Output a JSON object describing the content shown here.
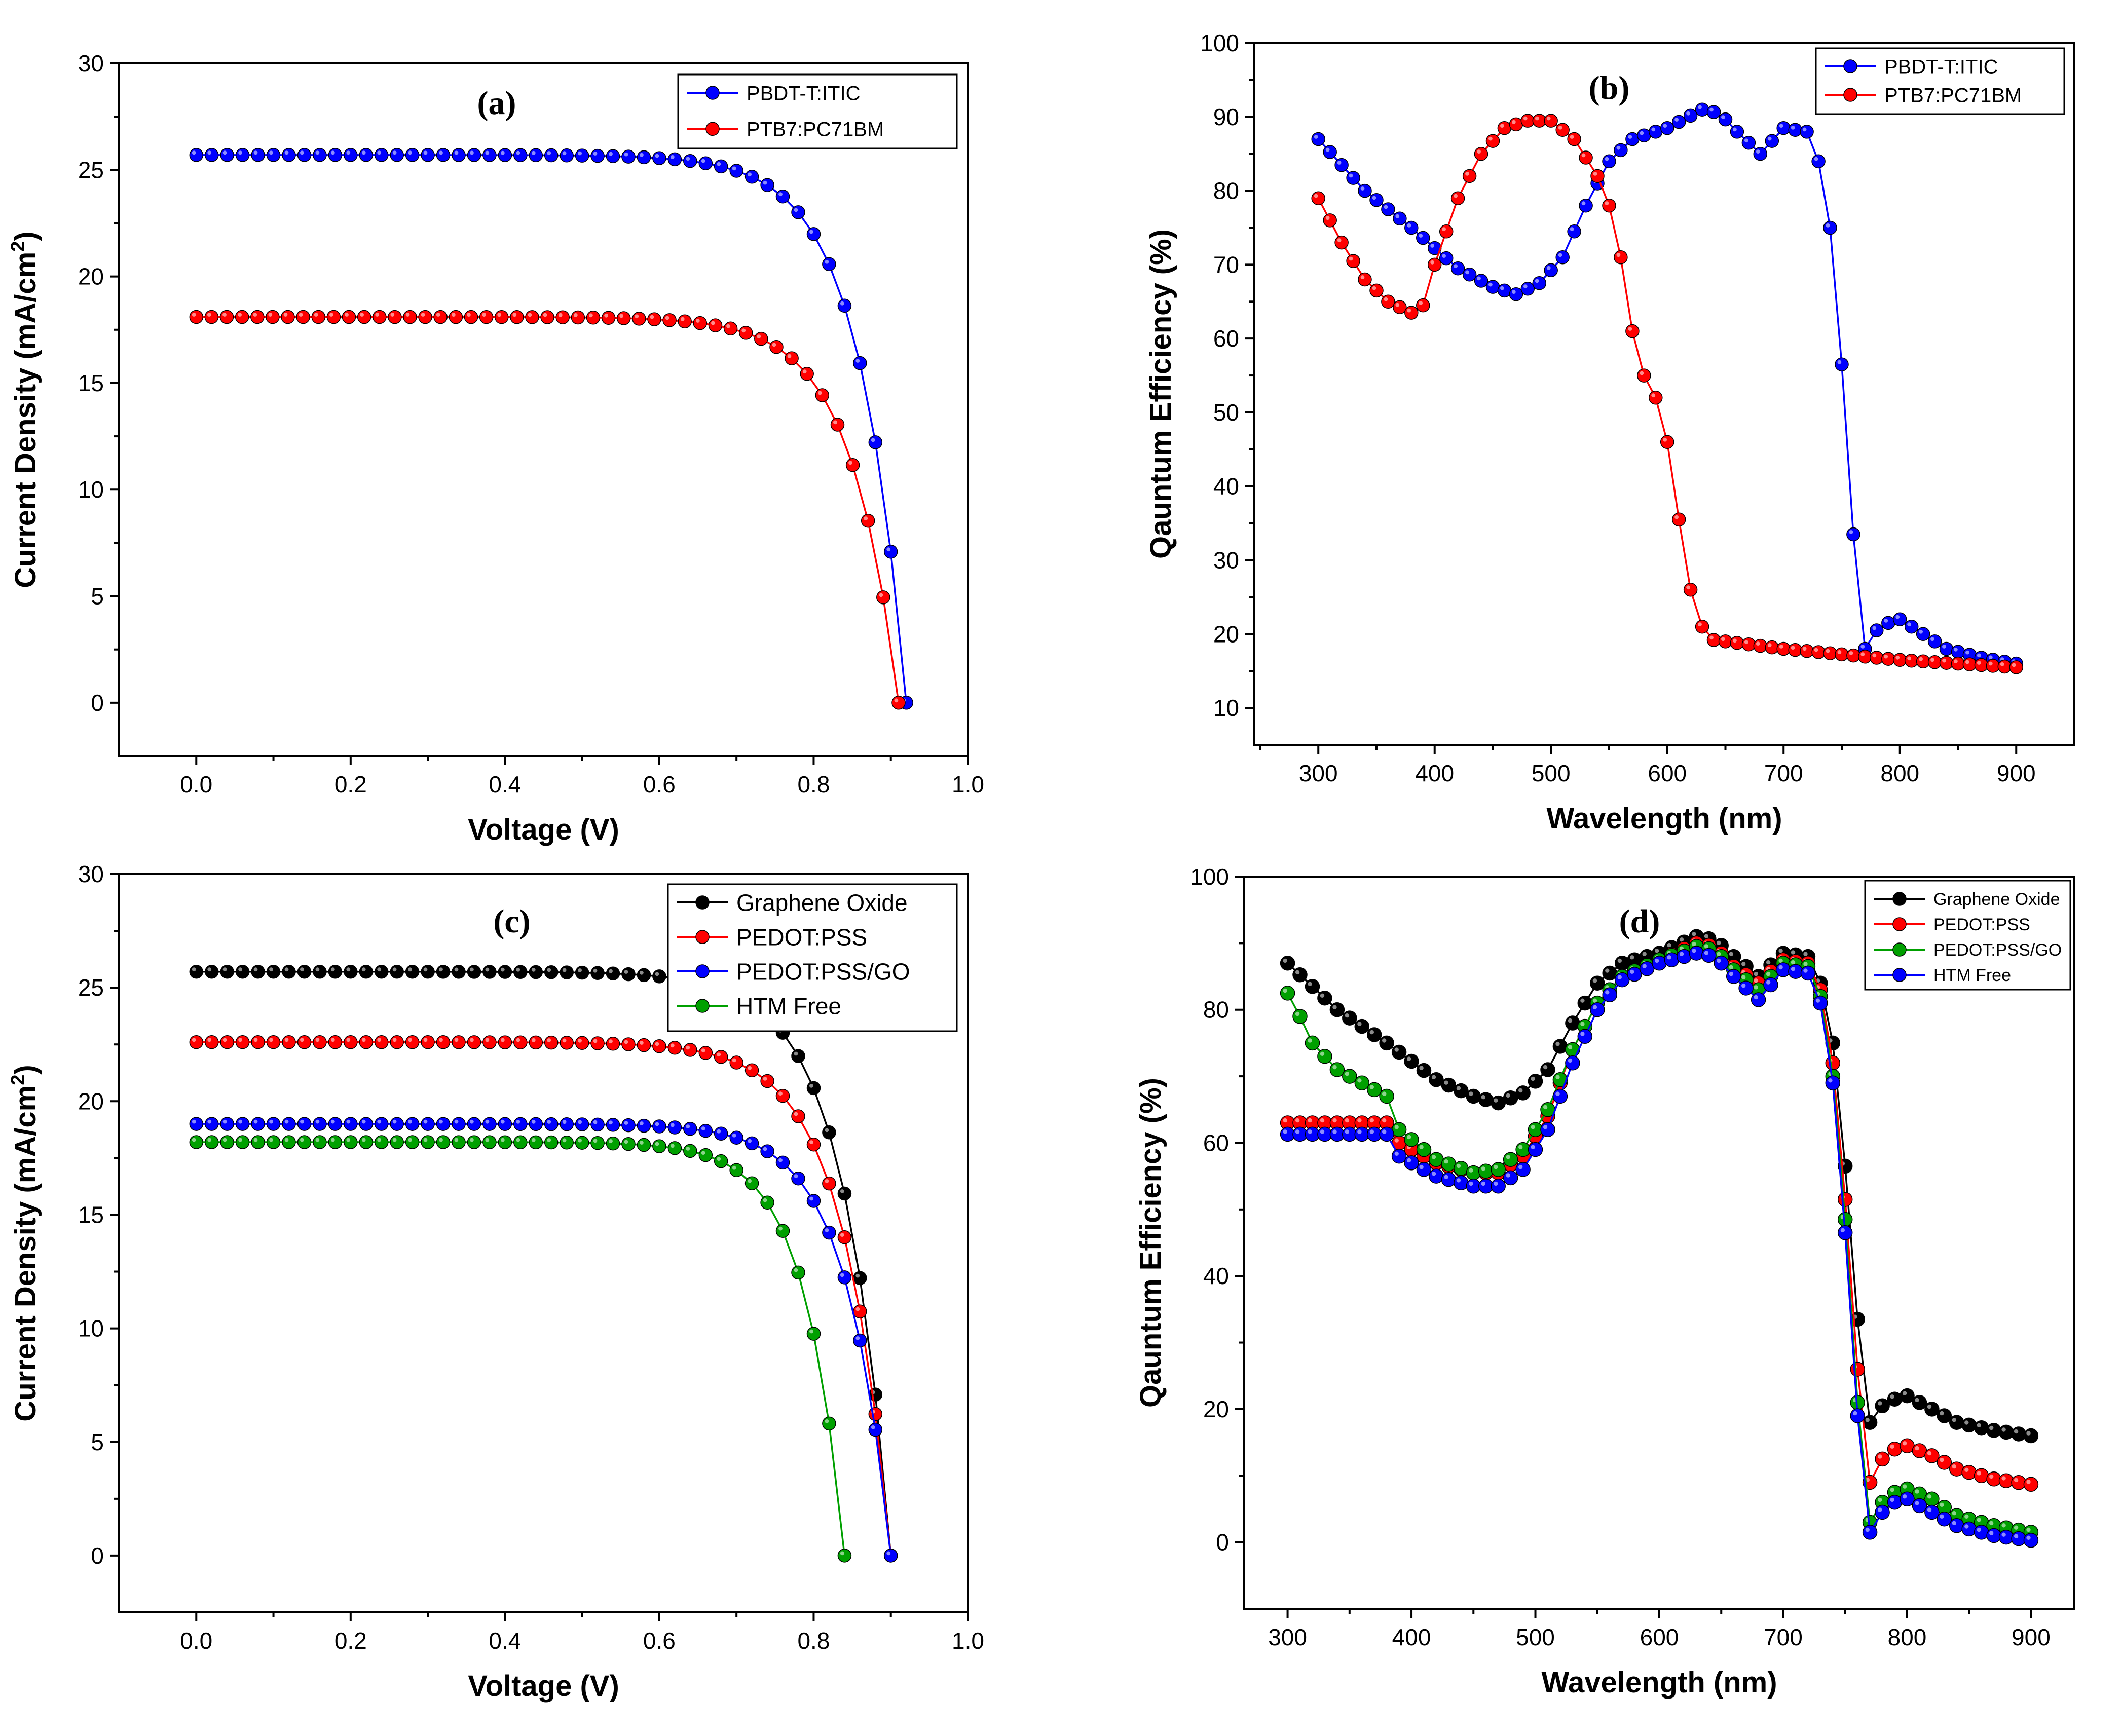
{
  "chart_data": [
    {
      "id": "a",
      "type": "line",
      "panel_label": "(a)",
      "xlabel": "Voltage (V)",
      "ylabel": "Current Density (mA/cm²)",
      "ylabel_base": "Current Density (mA/cm",
      "ylabel_sup": "2",
      "ylabel_end": ")",
      "xlim": [
        -0.1,
        1.0
      ],
      "ylim": [
        -2.5,
        30
      ],
      "xticks": [
        0.0,
        0.2,
        0.4,
        0.6,
        0.8,
        1.0
      ],
      "xtick_labels": [
        "0.0",
        "0.2",
        "0.4",
        "0.6",
        "0.8",
        "1.0"
      ],
      "yticks": [
        0,
        5,
        10,
        15,
        20,
        25,
        30
      ],
      "ytick_labels": [
        "0",
        "5",
        "10",
        "15",
        "20",
        "25",
        "30"
      ],
      "legend_position": "top-right",
      "series": [
        {
          "name": "PBDT-T:ITIC",
          "color": "#0000ff",
          "model": "jv",
          "params": {
            "jsc": 25.7,
            "voc": 0.92,
            "npts": 47
          }
        },
        {
          "name": "PTB7:PC71BM",
          "color": "#ff0000",
          "model": "jv",
          "params": {
            "jsc": 18.1,
            "voc": 0.91,
            "npts": 47
          }
        }
      ]
    },
    {
      "id": "b",
      "type": "line",
      "panel_label": "(b)",
      "xlabel": "Wavelength (nm)",
      "ylabel": "Qauntum Efficiency (%)",
      "xlim": [
        245,
        950
      ],
      "ylim": [
        5,
        100
      ],
      "xticks": [
        300,
        400,
        500,
        600,
        700,
        800,
        900
      ],
      "xtick_labels": [
        "300",
        "400",
        "500",
        "600",
        "700",
        "800",
        "900"
      ],
      "yticks": [
        10,
        20,
        30,
        40,
        50,
        60,
        70,
        80,
        90,
        100
      ],
      "ytick_labels": [
        "10",
        "20",
        "30",
        "40",
        "50",
        "60",
        "70",
        "80",
        "90",
        "100"
      ],
      "legend_position": "top-right",
      "series": [
        {
          "name": "PBDT-T:ITIC",
          "color": "#0000ff",
          "step": 10,
          "anchors": [
            [
              300,
              87
            ],
            [
              340,
              80
            ],
            [
              380,
              75
            ],
            [
              420,
              69.5
            ],
            [
              450,
              67
            ],
            [
              470,
              66
            ],
            [
              490,
              67.5
            ],
            [
              510,
              71
            ],
            [
              530,
              78
            ],
            [
              550,
              84
            ],
            [
              570,
              87
            ],
            [
              600,
              88.5
            ],
            [
              630,
              91
            ],
            [
              645,
              90.5
            ],
            [
              660,
              88
            ],
            [
              680,
              85
            ],
            [
              700,
              88.5
            ],
            [
              720,
              88
            ],
            [
              730,
              84
            ],
            [
              740,
              75
            ],
            [
              750,
              56.5
            ],
            [
              760,
              33.5
            ],
            [
              770,
              18
            ],
            [
              780,
              20.5
            ],
            [
              790,
              21.5
            ],
            [
              800,
              22
            ],
            [
              820,
              20
            ],
            [
              840,
              18
            ],
            [
              870,
              16.8
            ],
            [
              900,
              16
            ]
          ]
        },
        {
          "name": "PTB7:PC71BM",
          "color": "#ff0000",
          "step": 10,
          "anchors": [
            [
              300,
              79
            ],
            [
              320,
              73
            ],
            [
              340,
              68
            ],
            [
              360,
              65
            ],
            [
              380,
              63.5
            ],
            [
              390,
              64.5
            ],
            [
              400,
              70
            ],
            [
              420,
              79
            ],
            [
              440,
              85
            ],
            [
              460,
              88.5
            ],
            [
              480,
              89.5
            ],
            [
              500,
              89.5
            ],
            [
              520,
              87
            ],
            [
              540,
              82
            ],
            [
              550,
              78
            ],
            [
              560,
              71
            ],
            [
              570,
              61
            ],
            [
              580,
              55
            ],
            [
              590,
              52
            ],
            [
              600,
              46
            ],
            [
              610,
              35.5
            ],
            [
              620,
              26
            ],
            [
              630,
              21
            ],
            [
              640,
              19.2
            ],
            [
              700,
              18
            ],
            [
              800,
              16.5
            ],
            [
              900,
              15.5
            ]
          ]
        }
      ]
    },
    {
      "id": "c",
      "type": "line",
      "panel_label": "(c)",
      "xlabel": "Voltage (V)",
      "ylabel": "Current Density (mA/cm²)",
      "ylabel_base": "Current Density (mA/cm",
      "ylabel_sup": "2",
      "ylabel_end": ")",
      "xlim": [
        -0.1,
        1.0
      ],
      "ylim": [
        -2.5,
        30
      ],
      "xticks": [
        0.0,
        0.2,
        0.4,
        0.6,
        0.8,
        1.0
      ],
      "xtick_labels": [
        "0.0",
        "0.2",
        "0.4",
        "0.6",
        "0.8",
        "1.0"
      ],
      "yticks": [
        0,
        5,
        10,
        15,
        20,
        25,
        30
      ],
      "ytick_labels": [
        "0",
        "5",
        "10",
        "15",
        "20",
        "25",
        "30"
      ],
      "legend_position": "top-right",
      "series": [
        {
          "name": "Graphene Oxide",
          "color": "#000000",
          "model": "jv",
          "params": {
            "jsc": 25.7,
            "voc": 0.9,
            "npts": 46
          }
        },
        {
          "name": "PEDOT:PSS",
          "color": "#ff0000",
          "model": "jv",
          "params": {
            "jsc": 22.6,
            "voc": 0.9,
            "npts": 46
          }
        },
        {
          "name": "PEDOT:PSS/GO",
          "color": "#0000ff",
          "model": "jv_steep",
          "params": {
            "jsc": 19.0,
            "voc": 0.9,
            "npts": 46
          }
        },
        {
          "name": "HTM Free",
          "color": "#00a000",
          "model": "jv_early",
          "params": {
            "jsc": 18.2,
            "voc": 0.84,
            "npts": 43
          }
        }
      ]
    },
    {
      "id": "d",
      "type": "line",
      "panel_label": "(d)",
      "xlabel": "Wavelength (nm)",
      "ylabel": "Qauntum Efficiency (%)",
      "xlim": [
        265,
        935
      ],
      "ylim": [
        -10,
        100
      ],
      "xticks": [
        300,
        400,
        500,
        600,
        700,
        800,
        900
      ],
      "xtick_labels": [
        "300",
        "400",
        "500",
        "600",
        "700",
        "800",
        "900"
      ],
      "yticks": [
        0,
        20,
        40,
        60,
        80,
        100
      ],
      "ytick_labels": [
        "0",
        "20",
        "40",
        "60",
        "80",
        "100"
      ],
      "legend_position": "top-right",
      "series": [
        {
          "name": "Graphene Oxide",
          "color": "#000000",
          "step": 10,
          "anchors": [
            [
              300,
              87
            ],
            [
              340,
              80
            ],
            [
              380,
              75
            ],
            [
              420,
              69.5
            ],
            [
              450,
              67
            ],
            [
              470,
              66
            ],
            [
              490,
              67.5
            ],
            [
              510,
              71
            ],
            [
              530,
              78
            ],
            [
              550,
              84
            ],
            [
              570,
              87
            ],
            [
              600,
              88.5
            ],
            [
              630,
              91
            ],
            [
              645,
              90.5
            ],
            [
              660,
              88
            ],
            [
              680,
              85
            ],
            [
              700,
              88.5
            ],
            [
              720,
              88
            ],
            [
              730,
              84
            ],
            [
              740,
              75
            ],
            [
              750,
              56.5
            ],
            [
              760,
              33.5
            ],
            [
              770,
              18
            ],
            [
              780,
              20.5
            ],
            [
              790,
              21.5
            ],
            [
              800,
              22
            ],
            [
              820,
              20
            ],
            [
              840,
              18
            ],
            [
              870,
              16.8
            ],
            [
              900,
              16
            ]
          ]
        },
        {
          "name": "PEDOT:PSS",
          "color": "#ff0000",
          "step": 10,
          "anchors": [
            [
              300,
              63
            ],
            [
              380,
              63
            ],
            [
              390,
              60
            ],
            [
              420,
              57
            ],
            [
              450,
              55.5
            ],
            [
              470,
              55.5
            ],
            [
              490,
              58
            ],
            [
              510,
              64
            ],
            [
              530,
              74
            ],
            [
              550,
              81
            ],
            [
              570,
              85
            ],
            [
              600,
              87.5
            ],
            [
              630,
              90
            ],
            [
              645,
              89.5
            ],
            [
              660,
              86.5
            ],
            [
              680,
              84
            ],
            [
              700,
              87.5
            ],
            [
              720,
              87
            ],
            [
              730,
              83
            ],
            [
              740,
              72
            ],
            [
              750,
              51.5
            ],
            [
              760,
              26
            ],
            [
              770,
              9
            ],
            [
              780,
              12.5
            ],
            [
              790,
              14
            ],
            [
              800,
              14.5
            ],
            [
              820,
              13
            ],
            [
              840,
              11
            ],
            [
              870,
              9.5
            ],
            [
              900,
              8.7
            ]
          ]
        },
        {
          "name": "PEDOT:PSS/GO",
          "color": "#00a000",
          "step": 10,
          "anchors": [
            [
              300,
              82.5
            ],
            [
              310,
              79
            ],
            [
              320,
              75
            ],
            [
              340,
              71
            ],
            [
              360,
              69
            ],
            [
              380,
              67
            ],
            [
              390,
              62
            ],
            [
              420,
              57.5
            ],
            [
              450,
              55.5
            ],
            [
              470,
              56
            ],
            [
              490,
              59
            ],
            [
              510,
              65
            ],
            [
              530,
              74
            ],
            [
              550,
              81
            ],
            [
              570,
              85
            ],
            [
              600,
              87.5
            ],
            [
              630,
              89.5
            ],
            [
              645,
              89
            ],
            [
              660,
              86
            ],
            [
              680,
              83
            ],
            [
              700,
              87
            ],
            [
              720,
              86.5
            ],
            [
              730,
              82
            ],
            [
              740,
              70
            ],
            [
              750,
              48.5
            ],
            [
              760,
              21
            ],
            [
              770,
              3
            ],
            [
              780,
              6
            ],
            [
              790,
              7.5
            ],
            [
              800,
              8
            ],
            [
              820,
              6.5
            ],
            [
              840,
              4
            ],
            [
              870,
              2.5
            ],
            [
              900,
              1.5
            ]
          ]
        },
        {
          "name": "HTM Free",
          "color": "#0000ff",
          "step": 10,
          "anchors": [
            [
              300,
              61.3
            ],
            [
              380,
              61.3
            ],
            [
              390,
              58
            ],
            [
              420,
              55
            ],
            [
              450,
              53.5
            ],
            [
              470,
              53.5
            ],
            [
              490,
              56
            ],
            [
              510,
              62
            ],
            [
              530,
              72
            ],
            [
              550,
              80
            ],
            [
              570,
              84.5
            ],
            [
              600,
              87
            ],
            [
              630,
              88.5
            ],
            [
              645,
              88
            ],
            [
              660,
              85
            ],
            [
              680,
              81.5
            ],
            [
              700,
              86
            ],
            [
              720,
              85.5
            ],
            [
              730,
              81
            ],
            [
              740,
              69
            ],
            [
              750,
              46.5
            ],
            [
              760,
              19
            ],
            [
              770,
              1.5
            ],
            [
              780,
              4.5
            ],
            [
              790,
              6
            ],
            [
              800,
              6.5
            ],
            [
              820,
              4.5
            ],
            [
              840,
              2.5
            ],
            [
              870,
              1
            ],
            [
              900,
              0.3
            ]
          ]
        }
      ]
    }
  ]
}
